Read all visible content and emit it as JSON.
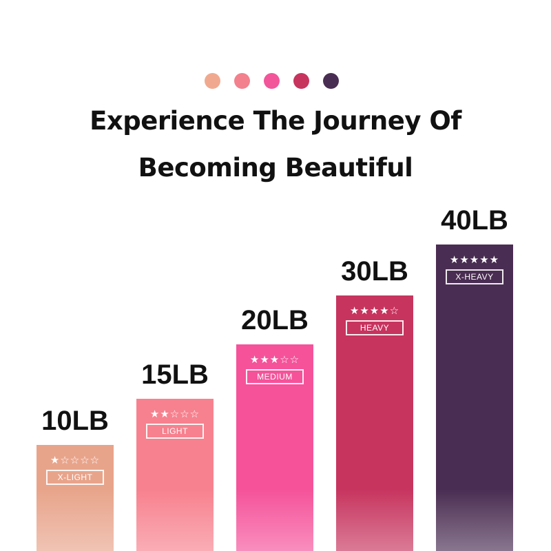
{
  "header": {
    "dot_colors": [
      "#f0a98f",
      "#f3808d",
      "#f2559a",
      "#c7345e",
      "#4a2d52"
    ],
    "title_line1": "Experience The Journey Of",
    "title_line2": "Becoming Beautiful"
  },
  "chart_data": {
    "type": "bar",
    "categories": [
      "X-LIGHT",
      "LIGHT",
      "MEDIUM",
      "HEAVY",
      "X-HEAVY"
    ],
    "values": [
      10,
      15,
      20,
      30,
      40
    ],
    "value_labels": [
      "10LB",
      "15LB",
      "20LB",
      "30LB",
      "40LB"
    ],
    "star_ratings": [
      1,
      2,
      3,
      4,
      5
    ],
    "max_stars": 5,
    "colors": [
      "#e8a48b",
      "#f7818e",
      "#f5529a",
      "#c7345e",
      "#4a2d52"
    ],
    "grid": false,
    "title": "",
    "xlabel": "",
    "ylabel": ""
  }
}
